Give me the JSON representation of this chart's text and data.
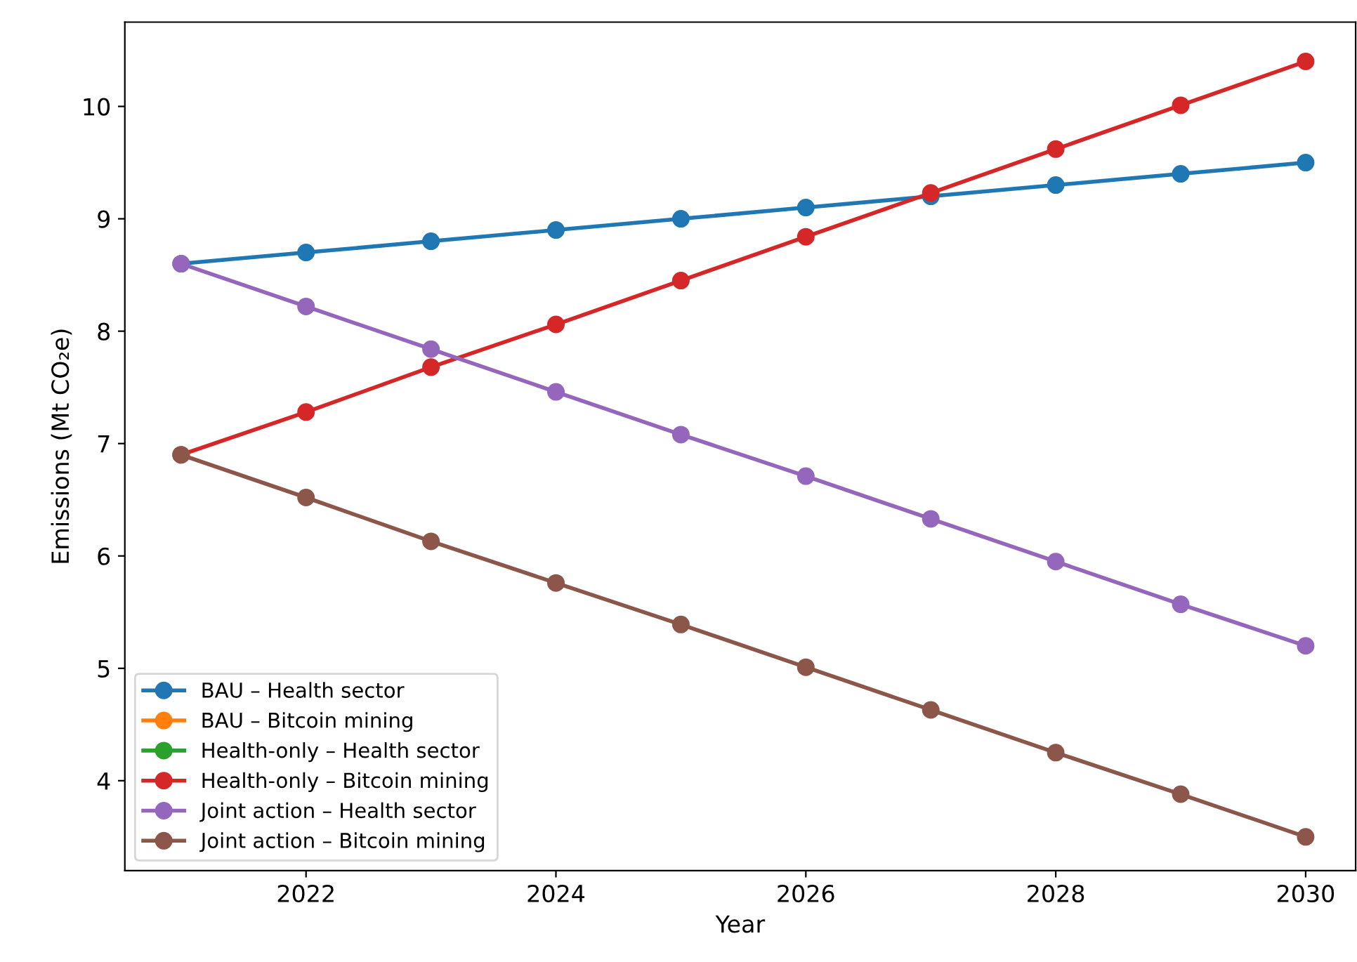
{
  "chart_data": {
    "type": "line",
    "xlabel": "Year",
    "ylabel": "Emissions (Mt CO₂e)",
    "x": [
      2021,
      2022,
      2023,
      2024,
      2025,
      2026,
      2027,
      2028,
      2029,
      2030
    ],
    "series": [
      {
        "name": "BAU – Health sector",
        "color": "#1f77b4",
        "values": [
          8.6,
          8.7,
          8.8,
          8.9,
          9.0,
          9.1,
          9.2,
          9.3,
          9.4,
          9.5
        ]
      },
      {
        "name": "BAU – Bitcoin mining",
        "color": "#ff7f0e",
        "values": [
          null,
          null,
          null,
          null,
          null,
          null,
          null,
          null,
          null,
          null
        ]
      },
      {
        "name": "Health-only – Health sector",
        "color": "#2ca02c",
        "values": [
          null,
          null,
          null,
          null,
          null,
          null,
          null,
          null,
          null,
          null
        ]
      },
      {
        "name": "Health-only – Bitcoin mining",
        "color": "#d62728",
        "values": [
          6.9,
          7.28,
          7.68,
          8.06,
          8.45,
          8.84,
          9.23,
          9.62,
          10.01,
          10.4
        ]
      },
      {
        "name": "Joint action – Health sector",
        "color": "#9467bd",
        "values": [
          8.6,
          8.22,
          7.84,
          7.46,
          7.08,
          6.71,
          6.33,
          5.95,
          5.57,
          5.2
        ]
      },
      {
        "name": "Joint action – Bitcoin mining",
        "color": "#8c564b",
        "values": [
          6.9,
          6.52,
          6.13,
          5.76,
          5.39,
          5.01,
          4.63,
          4.25,
          3.88,
          3.5
        ]
      }
    ],
    "xlim": [
      2020.55,
      2030.4
    ],
    "xticks": [
      2022,
      2024,
      2026,
      2028,
      2030
    ],
    "ylim": [
      3.2,
      10.75
    ],
    "yticks": [
      4,
      5,
      6,
      7,
      8,
      9,
      10
    ],
    "marker": "circle",
    "line_style": "solid",
    "legend": "bottom left",
    "grid": false
  }
}
